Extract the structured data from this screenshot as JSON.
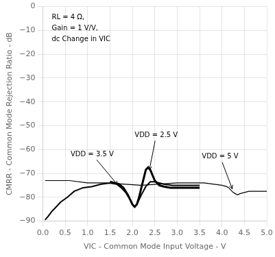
{
  "chart_data": {
    "type": "line",
    "xlabel": "VIC - Common Mode Input Voltage - V",
    "ylabel": "CMRR - Common Mode Rejection Ratio - dB",
    "xlim": [
      0,
      5
    ],
    "ylim": [
      -90,
      0
    ],
    "xticks": [
      {
        "value": 0,
        "label": "0.0"
      },
      {
        "value": 0.5,
        "label": "0.5"
      },
      {
        "value": 1,
        "label": "1.0"
      },
      {
        "value": 1.5,
        "label": "1.5"
      },
      {
        "value": 2,
        "label": "2.0"
      },
      {
        "value": 2.5,
        "label": "2.5"
      },
      {
        "value": 3,
        "label": "3.0"
      },
      {
        "value": 3.5,
        "label": "3.5"
      },
      {
        "value": 4,
        "label": "4.0"
      },
      {
        "value": 4.5,
        "label": "4.5"
      },
      {
        "value": 5,
        "label": "5.0"
      }
    ],
    "yticks": [
      0,
      {
        "value": -10,
        "label": "−10"
      },
      {
        "value": -20,
        "label": "−20"
      },
      {
        "value": -30,
        "label": "−30"
      },
      {
        "value": -40,
        "label": "−40"
      },
      {
        "value": -50,
        "label": "−50"
      },
      {
        "value": -60,
        "label": "−60"
      },
      {
        "value": -70,
        "label": "−70"
      },
      {
        "value": -80,
        "label": "−80"
      },
      {
        "value": -90,
        "label": "−90"
      }
    ],
    "grid": true,
    "series": [
      {
        "color": "#000000",
        "x": [
          0.05,
          0.3,
          0.6,
          1.0,
          1.4,
          1.8,
          2.2,
          2.6,
          3.0,
          3.2,
          3.4,
          3.6,
          3.8,
          4.0,
          4.1,
          4.15,
          4.2,
          4.25,
          4.3,
          4.35,
          4.4,
          4.5,
          4.6,
          4.7,
          4.8,
          4.9,
          5.0
        ],
        "values": [
          -73,
          -73,
          -73,
          -74,
          -74,
          -74.5,
          -75,
          -74.5,
          -74,
          -74,
          -74,
          -74,
          -74.5,
          -75,
          -75.5,
          -76,
          -77,
          -78,
          -78.5,
          -79,
          -78.5,
          -78,
          -77.5,
          -77.5,
          -77.5,
          -77.5,
          -77.5
        ]
      },
      {
        "color": "#000000",
        "x": [
          0.05,
          0.12,
          0.2,
          0.3,
          0.4,
          0.55,
          0.7,
          0.9,
          1.1,
          1.3,
          1.5,
          1.65,
          1.75,
          1.85,
          1.95,
          2.0,
          2.05,
          2.1,
          2.2,
          2.3,
          2.4,
          2.5,
          2.6,
          2.7,
          2.9,
          3.1,
          3.5
        ],
        "values": [
          -89.5,
          -88,
          -86,
          -84,
          -82,
          -80,
          -77.5,
          -76,
          -75.5,
          -74.5,
          -74,
          -74.5,
          -76,
          -78,
          -81,
          -83,
          -84,
          -83,
          -79,
          -75.5,
          -73.5,
          -73.5,
          -74,
          -74.5,
          -75,
          -75,
          -75
        ]
      },
      {
        "color": "#000000",
        "x": [
          1.5,
          1.6,
          1.7,
          1.8,
          1.9,
          2.0,
          2.05,
          2.1,
          2.15,
          2.2,
          2.3,
          2.35,
          2.4,
          2.5,
          2.6,
          2.7,
          2.85,
          3.0,
          3.5
        ],
        "values": [
          -73.5,
          -74,
          -74.5,
          -76,
          -79,
          -83,
          -84,
          -83,
          -80,
          -76,
          -68.5,
          -67.5,
          -68.5,
          -73,
          -75,
          -75.5,
          -76,
          -76,
          -76
        ]
      }
    ],
    "annotations": [
      {
        "text": "VDD = 3.5 V",
        "x": 0.62,
        "y": -62,
        "arrow_x": 1.67,
        "arrow_y": -74.8
      },
      {
        "text": "VDD = 2.5 V",
        "x": 2.05,
        "y": -54,
        "arrow_x": 2.38,
        "arrow_y": -68.5
      },
      {
        "text": "VDD = 5 V",
        "x": 3.55,
        "y": -63,
        "arrow_x": 4.23,
        "arrow_y": -76.5
      },
      {
        "text": "RL = 4 Ω,\nGain = 1 V/V,\ndc Change in VIC"
      }
    ]
  }
}
